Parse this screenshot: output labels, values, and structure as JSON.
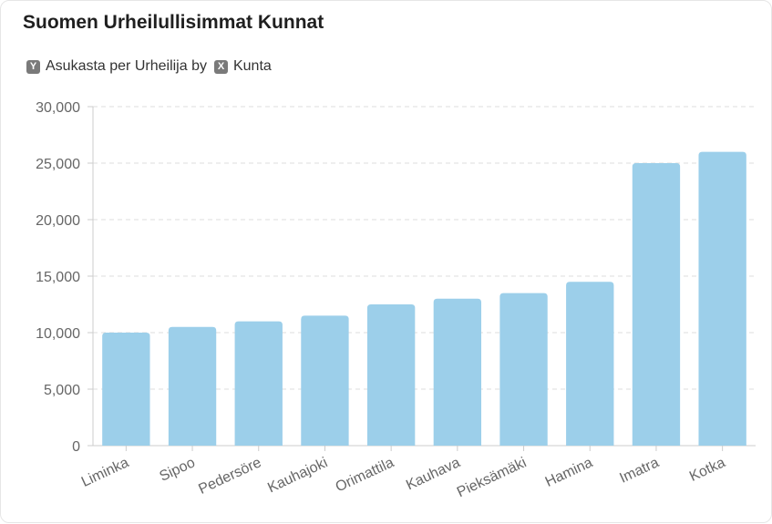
{
  "title": "Suomen Urheilullisimmat Kunnat",
  "legend": {
    "y_badge": "Y",
    "y_label": "Asukasta per Urheilija",
    "by": "by",
    "x_badge": "X",
    "x_label": "Kunta"
  },
  "colors": {
    "bar": "#9ccfea",
    "grid": "#dddddd",
    "axis": "#cccccc"
  },
  "chart_data": {
    "type": "bar",
    "title": "Suomen Urheilullisimmat Kunnat",
    "xlabel": "Kunta",
    "ylabel": "Asukasta per Urheilija",
    "categories": [
      "Liminka",
      "Sipoo",
      "Pedersöre",
      "Kauhajoki",
      "Orimattila",
      "Kauhava",
      "Pieksämäki",
      "Hamina",
      "Imatra",
      "Kotka"
    ],
    "values": [
      10000,
      10500,
      11000,
      11500,
      12500,
      13000,
      13500,
      14500,
      25000,
      26000
    ],
    "ylim": [
      0,
      30000
    ],
    "yticks": [
      0,
      5000,
      10000,
      15000,
      20000,
      25000,
      30000
    ],
    "ytick_labels": [
      "0",
      "5,000",
      "10,000",
      "15,000",
      "20,000",
      "25,000",
      "30,000"
    ],
    "grid": true
  }
}
